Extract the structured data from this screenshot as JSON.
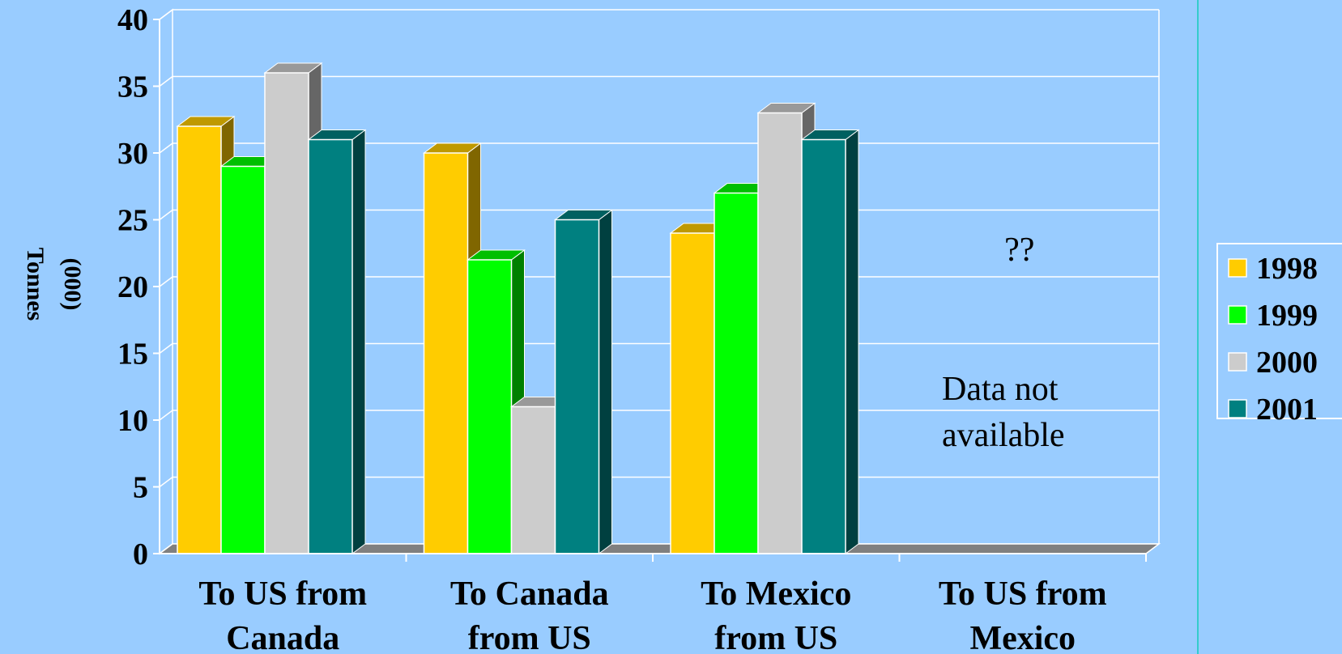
{
  "chart_data": {
    "type": "bar",
    "ylabel": [
      "Tonnes",
      "(000)"
    ],
    "ylim": [
      0,
      40
    ],
    "yticks": [
      "0",
      "5",
      "10",
      "15",
      "20",
      "25",
      "30",
      "35",
      "40"
    ],
    "categories": [
      [
        "To US from",
        "Canada"
      ],
      [
        "To Canada",
        "from US"
      ],
      [
        "To Mexico",
        "from US"
      ],
      [
        "To US from",
        "Mexico"
      ]
    ],
    "series": [
      {
        "name": "1998",
        "color": "#ffcc00",
        "values": [
          32,
          30,
          24,
          null
        ]
      },
      {
        "name": "1999",
        "color": "#00ff00",
        "values": [
          29,
          22,
          27,
          null
        ]
      },
      {
        "name": "2000",
        "color": "#cccccc",
        "values": [
          36,
          11,
          33,
          null
        ]
      },
      {
        "name": "2001",
        "color": "#008080",
        "values": [
          31,
          25,
          31,
          null
        ]
      }
    ],
    "annotations": {
      "question": "??",
      "not_available": [
        "Data not",
        "available"
      ]
    },
    "legend_position": "right",
    "grid": true
  }
}
